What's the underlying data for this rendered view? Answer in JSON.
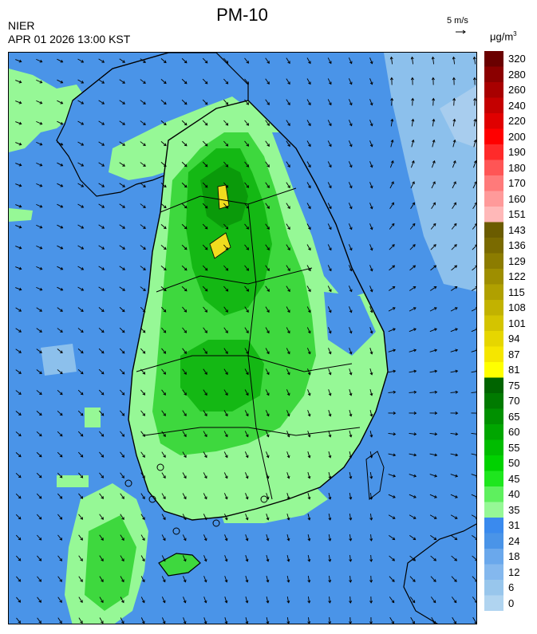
{
  "header": {
    "title": "PM-10",
    "agency": "NIER",
    "timestamp": "APR 01 2026 13:00 KST"
  },
  "wind_reference": {
    "label": "5 m/s"
  },
  "legend": {
    "unit_base": "μg/m",
    "unit_exp": "3",
    "bins": [
      {
        "label": "320",
        "color": "#6a0000"
      },
      {
        "label": "280",
        "color": "#8b0000"
      },
      {
        "label": "260",
        "color": "#a80000"
      },
      {
        "label": "240",
        "color": "#c40000"
      },
      {
        "label": "220",
        "color": "#e00000"
      },
      {
        "label": "200",
        "color": "#ff0000"
      },
      {
        "label": "190",
        "color": "#ff2a2a"
      },
      {
        "label": "180",
        "color": "#ff5555"
      },
      {
        "label": "170",
        "color": "#ff7a7a"
      },
      {
        "label": "160",
        "color": "#ff9a9a"
      },
      {
        "label": "151",
        "color": "#ffb8b8"
      },
      {
        "label": "143",
        "color": "#6b5c00"
      },
      {
        "label": "136",
        "color": "#7a6a00"
      },
      {
        "label": "129",
        "color": "#8c7c00"
      },
      {
        "label": "122",
        "color": "#9e8e00"
      },
      {
        "label": "115",
        "color": "#b0a000"
      },
      {
        "label": "108",
        "color": "#c2b200"
      },
      {
        "label": "101",
        "color": "#d4c400"
      },
      {
        "label": "94",
        "color": "#e6d600"
      },
      {
        "label": "87",
        "color": "#f5e600"
      },
      {
        "label": "81",
        "color": "#ffff00"
      },
      {
        "label": "75",
        "color": "#006400"
      },
      {
        "label": "70",
        "color": "#007a00"
      },
      {
        "label": "65",
        "color": "#009000"
      },
      {
        "label": "60",
        "color": "#00a600"
      },
      {
        "label": "55",
        "color": "#00bc00"
      },
      {
        "label": "50",
        "color": "#00d200"
      },
      {
        "label": "45",
        "color": "#1ee61e"
      },
      {
        "label": "40",
        "color": "#5ef05e"
      },
      {
        "label": "35",
        "color": "#96f896"
      },
      {
        "label": "31",
        "color": "#3a8aee"
      },
      {
        "label": "24",
        "color": "#4a94e8"
      },
      {
        "label": "18",
        "color": "#6aa8ec"
      },
      {
        "label": "12",
        "color": "#84b8ee"
      },
      {
        "label": "6",
        "color": "#98c6ec"
      },
      {
        "label": "0",
        "color": "#b0d4f0"
      }
    ]
  },
  "map": {
    "colors": {
      "sea": "#4a94e8",
      "sea_light": "#8cc0ec",
      "land_low": "#96f896",
      "land_mid": "#3ed83e",
      "land_high": "#14b814",
      "land_peak": "#0a9a0a",
      "hotspot": "#f0dc1e",
      "coast": "#000000"
    },
    "wind_icon": "wind-arrow-icon"
  }
}
